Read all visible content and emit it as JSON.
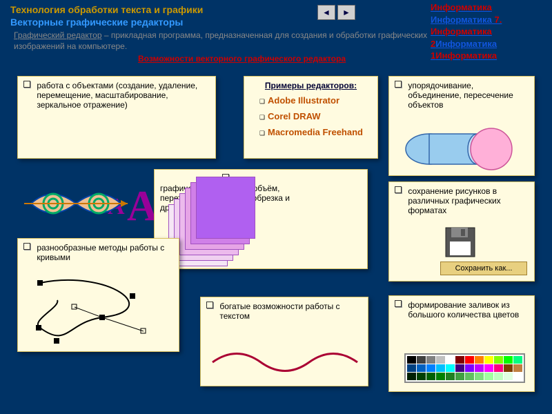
{
  "header": {
    "title1": "Технология обработки текста и графики",
    "title2": "Векторные графические редакторы"
  },
  "nav": {
    "left": "◄",
    "right": "►"
  },
  "rightnav": {
    "l1": "Информатика",
    "l2a": "Информатика",
    "l2b": "7.",
    "l3": "Информатика",
    "l4a": "2",
    "l4b": "Информатика",
    "l5a": "1",
    "l5b": "Информатика"
  },
  "definition": {
    "term": "Графический редактор",
    "rest": " – прикладная программа, предназначенная для создания и обработки графических изображений на компьютере."
  },
  "redlink": "Возможности векторного графического редактора",
  "cards": {
    "objects": "работа с объектами (создание, удаление, перемещение, масштабирование, зеркальное отражение)",
    "editors_title": "Примеры редакторов:",
    "editors": [
      "Adobe Illustrator",
      "Corel DRAW",
      "Macromedia Freehand"
    ],
    "union": "упорядочивание, объединение, пересечение объектов",
    "effects": "графические эффекты (объём, перетекание, фигурная обрезка и др.)",
    "save": "сохранение рисунков в различных графических форматах",
    "save_btn": "Сохранить как...",
    "curves": "разнообразные методы работы с кривыми",
    "text": "богатые возможности работы с текстом",
    "colors": "формирование заливок из большого количества цветов"
  },
  "aa": {
    "big": "A",
    "small": "A"
  },
  "stack_colors": [
    "#f5e6f5",
    "#f0d0f0",
    "#ecbaec",
    "#e6a4e6",
    "#d080e8",
    "#b060f0"
  ],
  "palette_colors": [
    "#000000",
    "#404040",
    "#808080",
    "#c0c0c0",
    "#ffffff",
    "#800000",
    "#ff0000",
    "#ff8000",
    "#ffff00",
    "#80ff00",
    "#00ff00",
    "#00ff80",
    "#004080",
    "#0060c0",
    "#0080ff",
    "#00c0ff",
    "#00ffff",
    "#400080",
    "#8000ff",
    "#c000ff",
    "#ff00ff",
    "#ff0080",
    "#804000",
    "#c08040",
    "#002000",
    "#004000",
    "#006000",
    "#008000",
    "#208020",
    "#40a040",
    "#60c060",
    "#80e080",
    "#a0ffa0",
    "#c0ffc0",
    "#e0ffe0",
    "#ffffff"
  ],
  "union_shape": {
    "cyl_color": "#99ccee",
    "cyl_stroke": "#3366aa",
    "circle_color": "#ffb0d8",
    "circle_stroke": "#cc5599"
  },
  "floppy": {
    "body": "#555555",
    "label": "#ffffff",
    "shutter": "#888888"
  }
}
